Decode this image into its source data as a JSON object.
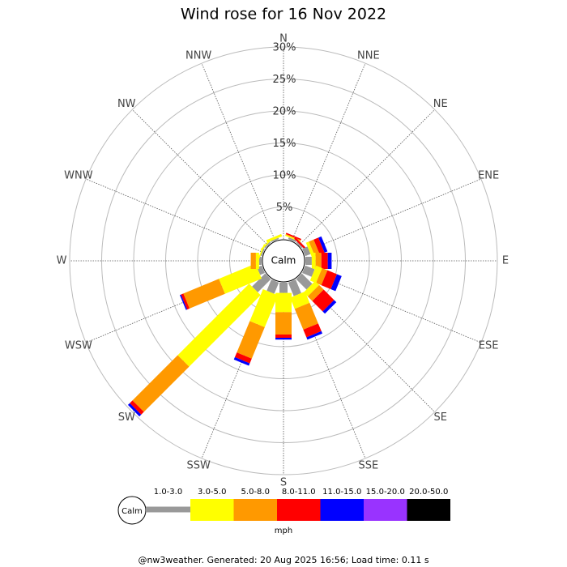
{
  "chart_data": {
    "type": "windrose",
    "title": "Wind rose for 16 Nov 2022",
    "calm_label": "Calm",
    "directions": [
      "N",
      "NNE",
      "NE",
      "ENE",
      "E",
      "ESE",
      "SE",
      "SSE",
      "S",
      "SSW",
      "SW",
      "WSW",
      "W",
      "WNW",
      "NW",
      "NNW"
    ],
    "rlim": [
      0,
      30
    ],
    "rticks": [
      {
        "value": 5,
        "label": "5%"
      },
      {
        "value": 10,
        "label": "10%"
      },
      {
        "value": 15,
        "label": "15%"
      },
      {
        "value": 20,
        "label": "20%"
      },
      {
        "value": 25,
        "label": "25%"
      },
      {
        "value": 30,
        "label": "30%"
      }
    ],
    "series": [
      {
        "name": "1.0-3.0",
        "color": "#999999",
        "values": [
          0,
          0.3,
          0.2,
          0.9,
          1.0,
          1.6,
          2.3,
          2.3,
          1.6,
          1.9,
          2.9,
          0.8,
          0.4,
          0.2,
          0.2,
          0.2
        ]
      },
      {
        "name": "3.0-5.0",
        "color": "#ffff00",
        "values": [
          0,
          0.2,
          0,
          0.5,
          0.6,
          1.0,
          0.9,
          1.9,
          3.0,
          5.4,
          15.8,
          6.2,
          0.5,
          0.2,
          0.2,
          0.4
        ]
      },
      {
        "name": "5.0-8.0",
        "color": "#ff9900",
        "values": [
          0,
          0.1,
          0,
          0.8,
          0.9,
          0.9,
          1.0,
          3.5,
          3.5,
          5.3,
          10.0,
          6.0,
          0.8,
          0,
          0,
          0
        ]
      },
      {
        "name": "8.0-11.0",
        "color": "#ff0000",
        "values": [
          0,
          0.2,
          0.3,
          0.8,
          1.0,
          1.6,
          2.3,
          1.3,
          0.5,
          0.8,
          0.6,
          0.4,
          0,
          0,
          0,
          0
        ]
      },
      {
        "name": "11.0-15.0",
        "color": "#0000ff",
        "values": [
          0,
          0,
          0,
          0.5,
          0.6,
          0.8,
          0.5,
          0.4,
          0.3,
          0.4,
          0.4,
          0.2,
          0,
          0,
          0,
          0
        ]
      },
      {
        "name": "15.0-20.0",
        "color": "#9933ff",
        "values": [
          0,
          0,
          0,
          0,
          0,
          0,
          0,
          0,
          0,
          0,
          0,
          0,
          0,
          0,
          0,
          0
        ]
      },
      {
        "name": "20.0-50.0",
        "color": "#000000",
        "values": [
          0,
          0,
          0,
          0,
          0,
          0,
          0,
          0,
          0,
          0,
          0,
          0,
          0,
          0,
          0,
          0
        ]
      }
    ],
    "legend_unit": "mph",
    "footer": "@nw3weather.  Generated: 20 Aug 2025 16:56; Load time: 0.11 s"
  }
}
